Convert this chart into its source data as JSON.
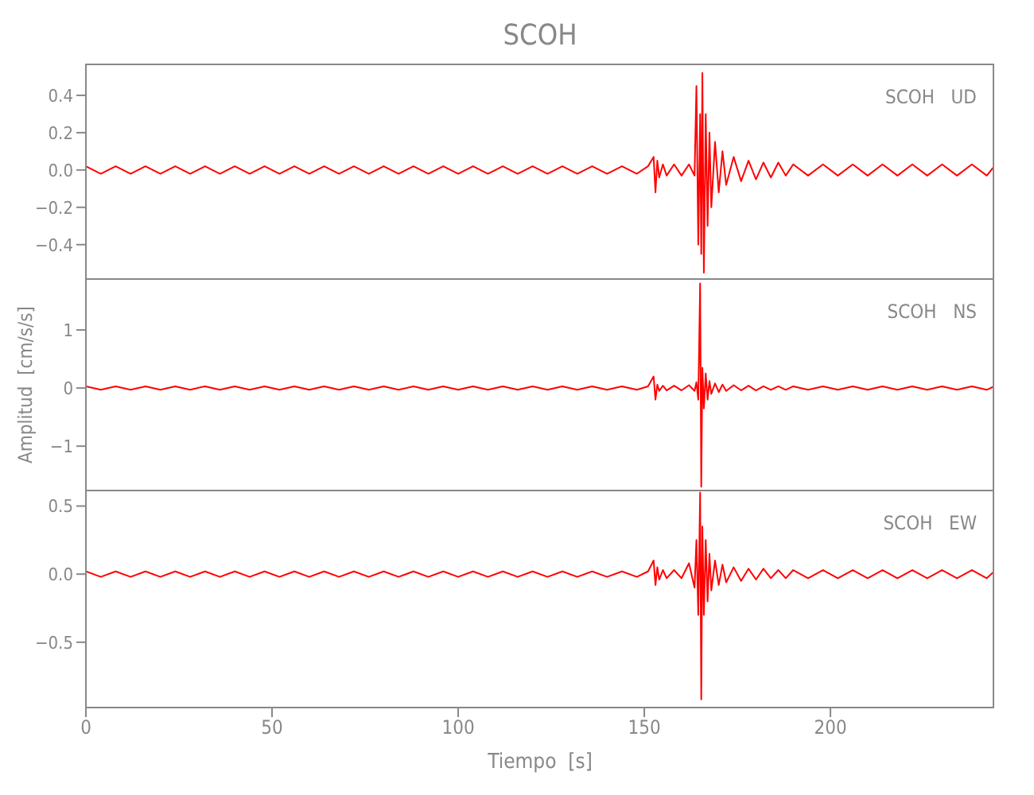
{
  "chart_data": [
    {
      "type": "line",
      "title": "SCOH",
      "annotations": [
        "SCOH   UD"
      ],
      "xlim": [
        0,
        244
      ],
      "ylim": [
        -0.58,
        0.57
      ],
      "yticks": [
        -0.4,
        -0.2,
        {
          "value": 0,
          "label": "0.0"
        },
        0.2,
        0.4
      ],
      "tick_labels": "y",
      "marker": "none",
      "line_style": "solid",
      "x": [
        0,
        4,
        8,
        12,
        16,
        20,
        24,
        28,
        32,
        36,
        40,
        44,
        48,
        52,
        56,
        60,
        64,
        68,
        72,
        76,
        80,
        84,
        88,
        92,
        96,
        100,
        104,
        108,
        112,
        116,
        120,
        124,
        128,
        132,
        136,
        140,
        144,
        148,
        151,
        152.5,
        153,
        153.5,
        154,
        155,
        156,
        158,
        160,
        162,
        163.5,
        164,
        164.5,
        165,
        165.3,
        165.6,
        166,
        166.5,
        167,
        167.5,
        168,
        169,
        170,
        171,
        172,
        174,
        176,
        178,
        180,
        182,
        184,
        186,
        188,
        190,
        194,
        198,
        202,
        206,
        210,
        214,
        218,
        222,
        226,
        230,
        234,
        238,
        242,
        244
      ],
      "series": [
        {
          "color": "#ff0000",
          "values": [
            0.02,
            -0.02,
            0.02,
            -0.02,
            0.02,
            -0.02,
            0.02,
            -0.02,
            0.02,
            -0.02,
            0.02,
            -0.02,
            0.02,
            -0.02,
            0.02,
            -0.02,
            0.02,
            -0.02,
            0.02,
            -0.02,
            0.02,
            -0.02,
            0.02,
            -0.02,
            0.02,
            -0.02,
            0.02,
            -0.02,
            0.02,
            -0.02,
            0.02,
            -0.02,
            0.02,
            -0.02,
            0.02,
            -0.02,
            0.02,
            -0.02,
            0.02,
            0.07,
            -0.12,
            0.05,
            -0.04,
            0.03,
            -0.03,
            0.03,
            -0.03,
            0.03,
            -0.03,
            0.45,
            -0.4,
            0.3,
            -0.45,
            0.52,
            -0.55,
            0.3,
            -0.3,
            0.2,
            -0.2,
            0.15,
            -0.12,
            0.1,
            -0.08,
            0.07,
            -0.06,
            0.05,
            -0.05,
            0.04,
            -0.04,
            0.04,
            -0.03,
            0.03,
            -0.03,
            0.03,
            -0.03,
            0.03,
            -0.03,
            0.03,
            -0.03,
            0.03,
            -0.03,
            0.03,
            -0.03,
            0.03,
            -0.03,
            0.02
          ]
        }
      ]
    },
    {
      "type": "line",
      "ylabel": "Amplitud  [cm/s/s]",
      "annotations": [
        "SCOH   NS"
      ],
      "xlim": [
        0,
        244
      ],
      "ylim": [
        -1.75,
        1.89
      ],
      "yticks": [
        -1,
        0,
        1
      ],
      "tick_labels": "y",
      "marker": "none",
      "line_style": "solid",
      "x": [
        0,
        4,
        8,
        12,
        16,
        20,
        24,
        28,
        32,
        36,
        40,
        44,
        48,
        52,
        56,
        60,
        64,
        68,
        72,
        76,
        80,
        84,
        88,
        92,
        96,
        100,
        104,
        108,
        112,
        116,
        120,
        124,
        128,
        132,
        136,
        140,
        144,
        148,
        151,
        152.5,
        153,
        153.5,
        154,
        155,
        156,
        158,
        160,
        162,
        163.5,
        164,
        164.5,
        165,
        165.3,
        165.6,
        166,
        166.5,
        167,
        167.5,
        168,
        169,
        170,
        171,
        172,
        174,
        176,
        178,
        180,
        182,
        184,
        186,
        188,
        190,
        194,
        198,
        202,
        206,
        210,
        214,
        218,
        222,
        226,
        230,
        234,
        238,
        242,
        244
      ],
      "series": [
        {
          "color": "#ff0000",
          "values": [
            0.03,
            -0.03,
            0.03,
            -0.03,
            0.03,
            -0.03,
            0.03,
            -0.03,
            0.03,
            -0.03,
            0.03,
            -0.03,
            0.03,
            -0.03,
            0.03,
            -0.03,
            0.03,
            -0.03,
            0.03,
            -0.03,
            0.03,
            -0.03,
            0.03,
            -0.03,
            0.03,
            -0.03,
            0.03,
            -0.03,
            0.03,
            -0.03,
            0.03,
            -0.03,
            0.03,
            -0.03,
            0.03,
            -0.03,
            0.03,
            -0.03,
            0.03,
            0.2,
            -0.2,
            0.06,
            -0.05,
            0.04,
            -0.04,
            0.04,
            -0.04,
            0.05,
            -0.05,
            0.1,
            -0.2,
            1.8,
            -1.7,
            0.35,
            -0.35,
            0.25,
            -0.2,
            0.12,
            -0.1,
            0.08,
            -0.07,
            0.06,
            -0.05,
            0.05,
            -0.04,
            0.04,
            -0.04,
            0.03,
            -0.03,
            0.03,
            -0.03,
            0.03,
            -0.03,
            0.03,
            -0.03,
            0.03,
            -0.03,
            0.03,
            -0.03,
            0.03,
            -0.03,
            0.03,
            -0.03,
            0.03,
            -0.03,
            0.03
          ]
        }
      ]
    },
    {
      "type": "line",
      "xlabel": "Tiempo  [s]",
      "annotations": [
        "SCOH   EW"
      ],
      "xlim": [
        0,
        244
      ],
      "xticks": [
        0,
        50,
        100,
        150,
        200
      ],
      "ylim": [
        -0.98,
        0.62
      ],
      "yticks": [
        -0.5,
        {
          "value": 0,
          "label": "0.0"
        },
        0.5
      ],
      "marker": "none",
      "line_style": "solid",
      "x": [
        0,
        4,
        8,
        12,
        16,
        20,
        24,
        28,
        32,
        36,
        40,
        44,
        48,
        52,
        56,
        60,
        64,
        68,
        72,
        76,
        80,
        84,
        88,
        92,
        96,
        100,
        104,
        108,
        112,
        116,
        120,
        124,
        128,
        132,
        136,
        140,
        144,
        148,
        151,
        152.5,
        153,
        153.5,
        154,
        155,
        156,
        158,
        160,
        162,
        163.5,
        164,
        164.5,
        165,
        165.3,
        165.6,
        166,
        166.5,
        167,
        167.5,
        168,
        169,
        170,
        171,
        172,
        174,
        176,
        178,
        180,
        182,
        184,
        186,
        188,
        190,
        194,
        198,
        202,
        206,
        210,
        214,
        218,
        222,
        226,
        230,
        234,
        238,
        242,
        244
      ],
      "series": [
        {
          "color": "#ff0000",
          "values": [
            0.02,
            -0.02,
            0.02,
            -0.02,
            0.02,
            -0.02,
            0.02,
            -0.02,
            0.02,
            -0.02,
            0.02,
            -0.02,
            0.02,
            -0.02,
            0.02,
            -0.02,
            0.02,
            -0.02,
            0.02,
            -0.02,
            0.02,
            -0.02,
            0.02,
            -0.02,
            0.02,
            -0.02,
            0.02,
            -0.02,
            0.02,
            -0.02,
            0.02,
            -0.02,
            0.02,
            -0.02,
            0.02,
            -0.02,
            0.02,
            -0.02,
            0.02,
            0.1,
            -0.08,
            0.05,
            -0.04,
            0.03,
            -0.03,
            0.03,
            -0.03,
            0.08,
            -0.1,
            0.25,
            -0.3,
            0.6,
            -0.92,
            0.35,
            -0.3,
            0.25,
            -0.2,
            0.15,
            -0.12,
            0.1,
            -0.08,
            0.07,
            -0.06,
            0.05,
            -0.05,
            0.04,
            -0.04,
            0.04,
            -0.03,
            0.03,
            -0.03,
            0.03,
            -0.03,
            0.03,
            -0.03,
            0.03,
            -0.03,
            0.03,
            -0.03,
            0.03,
            -0.03,
            0.03,
            -0.03,
            0.03,
            -0.03,
            0.02
          ]
        }
      ]
    }
  ]
}
